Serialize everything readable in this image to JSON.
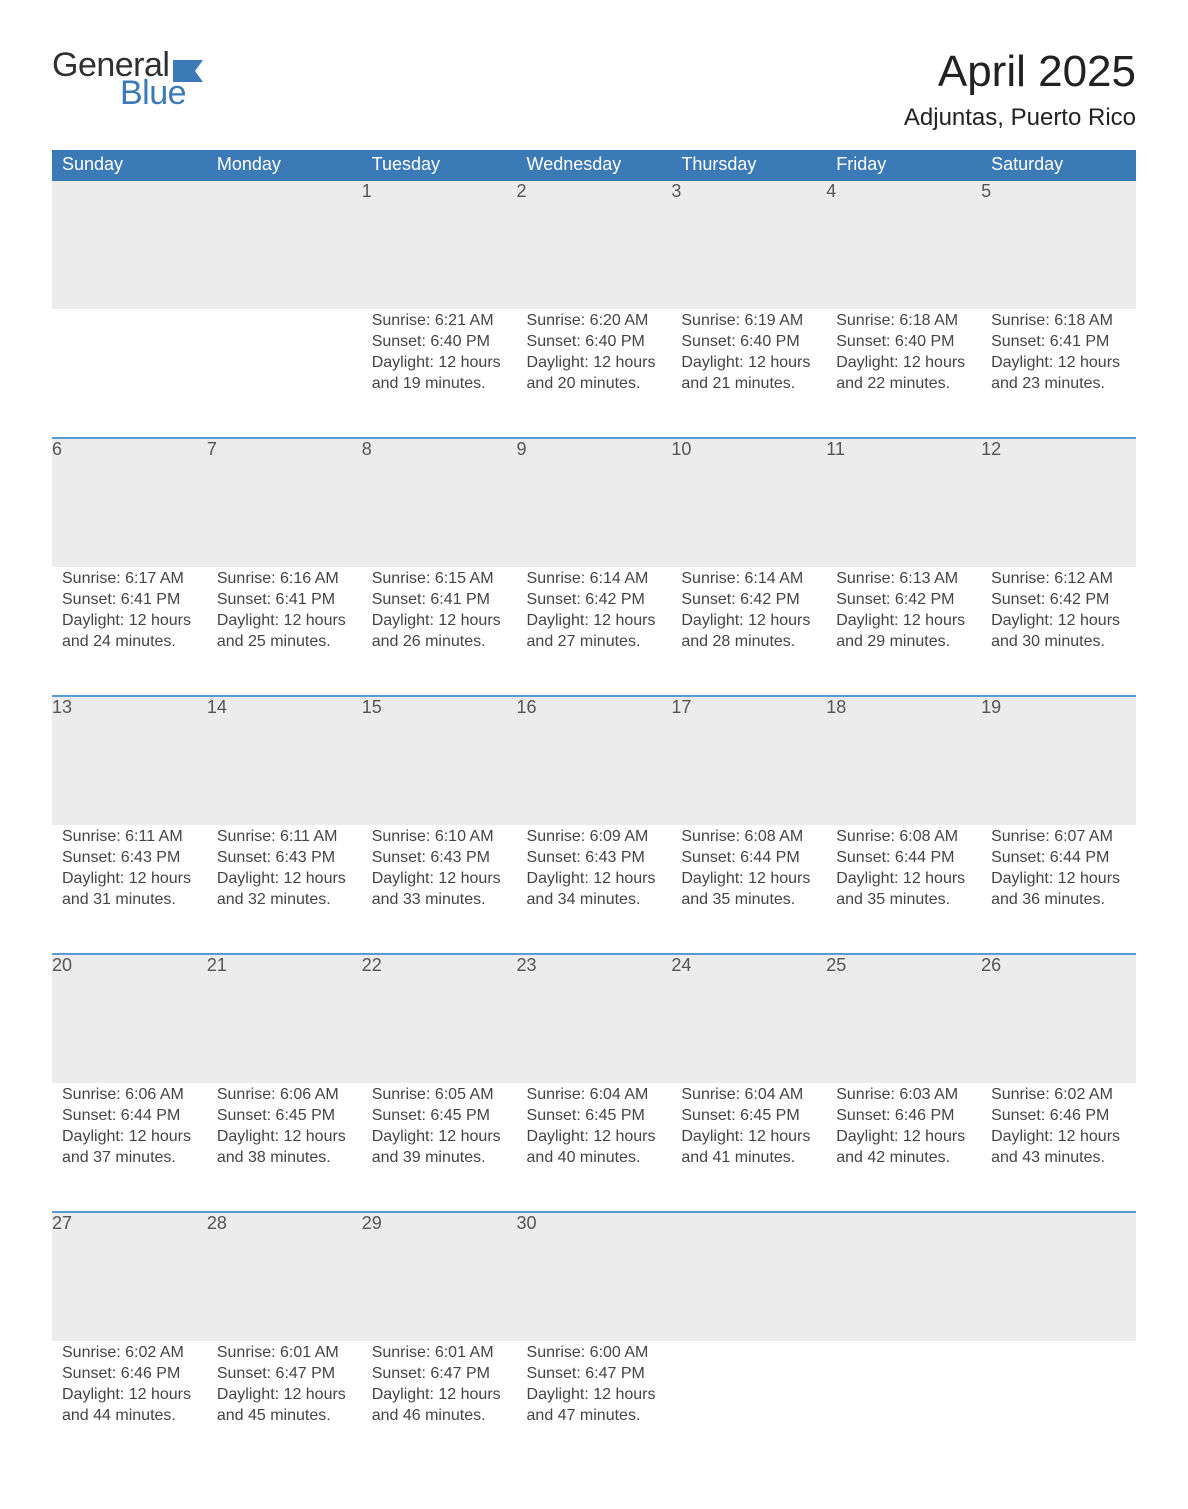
{
  "brand": {
    "word1": "General",
    "word2": "Blue",
    "word1_color": "#303030",
    "word2_color": "#3b79b7",
    "flag_color": "#3b79b7"
  },
  "header": {
    "title": "April 2025",
    "location": "Adjuntas, Puerto Rico"
  },
  "colors": {
    "header_bg": "#3b79b7",
    "header_text": "#ffffff",
    "row_stripe": "#ececec",
    "separator": "#5a9bd5",
    "body_text": "#444444",
    "background": "#ffffff"
  },
  "typography": {
    "title_fontsize": 44,
    "location_fontsize": 24,
    "weekday_fontsize": 18,
    "daynum_fontsize": 18,
    "body_fontsize": 16
  },
  "weekdays": [
    "Sunday",
    "Monday",
    "Tuesday",
    "Wednesday",
    "Thursday",
    "Friday",
    "Saturday"
  ],
  "weeks": [
    [
      null,
      null,
      {
        "n": "1",
        "sunrise": "Sunrise: 6:21 AM",
        "sunset": "Sunset: 6:40 PM",
        "daylight": "Daylight: 12 hours and 19 minutes."
      },
      {
        "n": "2",
        "sunrise": "Sunrise: 6:20 AM",
        "sunset": "Sunset: 6:40 PM",
        "daylight": "Daylight: 12 hours and 20 minutes."
      },
      {
        "n": "3",
        "sunrise": "Sunrise: 6:19 AM",
        "sunset": "Sunset: 6:40 PM",
        "daylight": "Daylight: 12 hours and 21 minutes."
      },
      {
        "n": "4",
        "sunrise": "Sunrise: 6:18 AM",
        "sunset": "Sunset: 6:40 PM",
        "daylight": "Daylight: 12 hours and 22 minutes."
      },
      {
        "n": "5",
        "sunrise": "Sunrise: 6:18 AM",
        "sunset": "Sunset: 6:41 PM",
        "daylight": "Daylight: 12 hours and 23 minutes."
      }
    ],
    [
      {
        "n": "6",
        "sunrise": "Sunrise: 6:17 AM",
        "sunset": "Sunset: 6:41 PM",
        "daylight": "Daylight: 12 hours and 24 minutes."
      },
      {
        "n": "7",
        "sunrise": "Sunrise: 6:16 AM",
        "sunset": "Sunset: 6:41 PM",
        "daylight": "Daylight: 12 hours and 25 minutes."
      },
      {
        "n": "8",
        "sunrise": "Sunrise: 6:15 AM",
        "sunset": "Sunset: 6:41 PM",
        "daylight": "Daylight: 12 hours and 26 minutes."
      },
      {
        "n": "9",
        "sunrise": "Sunrise: 6:14 AM",
        "sunset": "Sunset: 6:42 PM",
        "daylight": "Daylight: 12 hours and 27 minutes."
      },
      {
        "n": "10",
        "sunrise": "Sunrise: 6:14 AM",
        "sunset": "Sunset: 6:42 PM",
        "daylight": "Daylight: 12 hours and 28 minutes."
      },
      {
        "n": "11",
        "sunrise": "Sunrise: 6:13 AM",
        "sunset": "Sunset: 6:42 PM",
        "daylight": "Daylight: 12 hours and 29 minutes."
      },
      {
        "n": "12",
        "sunrise": "Sunrise: 6:12 AM",
        "sunset": "Sunset: 6:42 PM",
        "daylight": "Daylight: 12 hours and 30 minutes."
      }
    ],
    [
      {
        "n": "13",
        "sunrise": "Sunrise: 6:11 AM",
        "sunset": "Sunset: 6:43 PM",
        "daylight": "Daylight: 12 hours and 31 minutes."
      },
      {
        "n": "14",
        "sunrise": "Sunrise: 6:11 AM",
        "sunset": "Sunset: 6:43 PM",
        "daylight": "Daylight: 12 hours and 32 minutes."
      },
      {
        "n": "15",
        "sunrise": "Sunrise: 6:10 AM",
        "sunset": "Sunset: 6:43 PM",
        "daylight": "Daylight: 12 hours and 33 minutes."
      },
      {
        "n": "16",
        "sunrise": "Sunrise: 6:09 AM",
        "sunset": "Sunset: 6:43 PM",
        "daylight": "Daylight: 12 hours and 34 minutes."
      },
      {
        "n": "17",
        "sunrise": "Sunrise: 6:08 AM",
        "sunset": "Sunset: 6:44 PM",
        "daylight": "Daylight: 12 hours and 35 minutes."
      },
      {
        "n": "18",
        "sunrise": "Sunrise: 6:08 AM",
        "sunset": "Sunset: 6:44 PM",
        "daylight": "Daylight: 12 hours and 35 minutes."
      },
      {
        "n": "19",
        "sunrise": "Sunrise: 6:07 AM",
        "sunset": "Sunset: 6:44 PM",
        "daylight": "Daylight: 12 hours and 36 minutes."
      }
    ],
    [
      {
        "n": "20",
        "sunrise": "Sunrise: 6:06 AM",
        "sunset": "Sunset: 6:44 PM",
        "daylight": "Daylight: 12 hours and 37 minutes."
      },
      {
        "n": "21",
        "sunrise": "Sunrise: 6:06 AM",
        "sunset": "Sunset: 6:45 PM",
        "daylight": "Daylight: 12 hours and 38 minutes."
      },
      {
        "n": "22",
        "sunrise": "Sunrise: 6:05 AM",
        "sunset": "Sunset: 6:45 PM",
        "daylight": "Daylight: 12 hours and 39 minutes."
      },
      {
        "n": "23",
        "sunrise": "Sunrise: 6:04 AM",
        "sunset": "Sunset: 6:45 PM",
        "daylight": "Daylight: 12 hours and 40 minutes."
      },
      {
        "n": "24",
        "sunrise": "Sunrise: 6:04 AM",
        "sunset": "Sunset: 6:45 PM",
        "daylight": "Daylight: 12 hours and 41 minutes."
      },
      {
        "n": "25",
        "sunrise": "Sunrise: 6:03 AM",
        "sunset": "Sunset: 6:46 PM",
        "daylight": "Daylight: 12 hours and 42 minutes."
      },
      {
        "n": "26",
        "sunrise": "Sunrise: 6:02 AM",
        "sunset": "Sunset: 6:46 PM",
        "daylight": "Daylight: 12 hours and 43 minutes."
      }
    ],
    [
      {
        "n": "27",
        "sunrise": "Sunrise: 6:02 AM",
        "sunset": "Sunset: 6:46 PM",
        "daylight": "Daylight: 12 hours and 44 minutes."
      },
      {
        "n": "28",
        "sunrise": "Sunrise: 6:01 AM",
        "sunset": "Sunset: 6:47 PM",
        "daylight": "Daylight: 12 hours and 45 minutes."
      },
      {
        "n": "29",
        "sunrise": "Sunrise: 6:01 AM",
        "sunset": "Sunset: 6:47 PM",
        "daylight": "Daylight: 12 hours and 46 minutes."
      },
      {
        "n": "30",
        "sunrise": "Sunrise: 6:00 AM",
        "sunset": "Sunset: 6:47 PM",
        "daylight": "Daylight: 12 hours and 47 minutes."
      },
      null,
      null,
      null
    ]
  ]
}
